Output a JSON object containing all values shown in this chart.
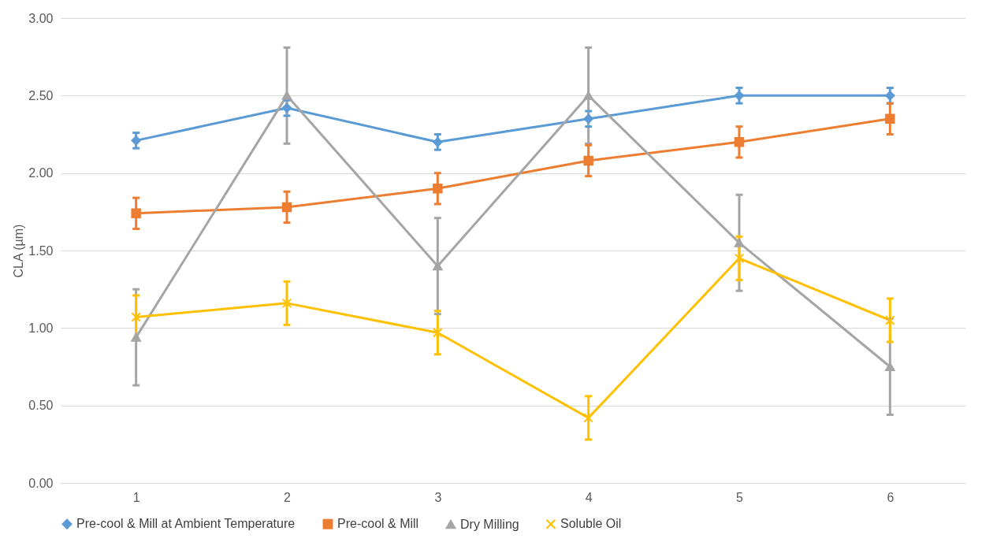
{
  "chart_data": {
    "type": "line",
    "ylabel": "CLA (µm)",
    "categories": [
      "1",
      "2",
      "3",
      "4",
      "5",
      "6"
    ],
    "ylim": [
      0,
      3
    ],
    "yticks": [
      {
        "value": 0,
        "label": "0.00"
      },
      {
        "value": 0.5,
        "label": "0.50"
      },
      {
        "value": 1,
        "label": "1.00"
      },
      {
        "value": 1.5,
        "label": "1.50"
      },
      {
        "value": 2,
        "label": "2.00"
      },
      {
        "value": 2.5,
        "label": "2.50"
      },
      {
        "value": 3,
        "label": "3.00"
      }
    ],
    "grid": "y",
    "legend": "bottom",
    "series": [
      {
        "name": "Pre-cool & Mill at Ambient Temperature",
        "color": "#5b9bd5",
        "marker": "diamond",
        "values": [
          2.21,
          2.42,
          2.2,
          2.35,
          2.5,
          2.5
        ],
        "errors": [
          0.05,
          0.05,
          0.05,
          0.05,
          0.05,
          0.05
        ]
      },
      {
        "name": "Pre-cool & Mill",
        "color": "#ed7d31",
        "marker": "square",
        "values": [
          1.74,
          1.78,
          1.9,
          2.08,
          2.2,
          2.35
        ],
        "errors": [
          0.1,
          0.1,
          0.1,
          0.1,
          0.1,
          0.1
        ]
      },
      {
        "name": "Dry Milling",
        "color": "#a5a5a5",
        "marker": "triangle",
        "values": [
          0.94,
          2.5,
          1.4,
          2.5,
          1.55,
          0.75
        ],
        "errors": [
          0.31,
          0.31,
          0.31,
          0.31,
          0.31,
          0.31
        ]
      },
      {
        "name": "Soluble Oil",
        "color": "#ffc000",
        "marker": "cross",
        "values": [
          1.07,
          1.16,
          0.97,
          0.42,
          1.45,
          1.05
        ],
        "errors": [
          0.14,
          0.14,
          0.14,
          0.14,
          0.14,
          0.14
        ]
      }
    ]
  }
}
